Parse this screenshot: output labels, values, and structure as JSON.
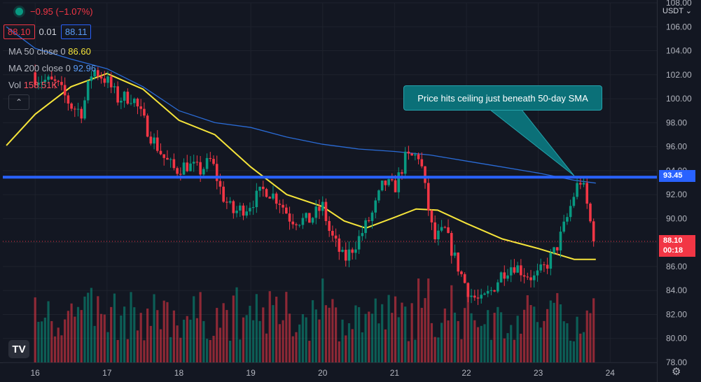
{
  "header": {
    "change": "−0.95 (−1.07%)",
    "bid": "88.10",
    "spread": "0.01",
    "ask": "88.11"
  },
  "legend": {
    "ma50_label": "MA 50 close 0",
    "ma50_value": "86.60",
    "ma200_label": "MA 200 close 0",
    "ma200_value": "92.96",
    "vol_label": "Vol",
    "vol_value": "158.51K",
    "collapse_symbol": "⌃"
  },
  "annotation": {
    "text": "Price hits ceiling just beneath 50-day SMA"
  },
  "price_axis": {
    "currency": "USDT ⌄",
    "horizontal_level": "93.45",
    "last_price": "88.10",
    "countdown": "00:18"
  },
  "branding": {
    "logo_text": "TV"
  },
  "settings_icon": "⚙",
  "chart_data": {
    "type": "candlestick",
    "title": "",
    "y_range": [
      78,
      108
    ],
    "y_ticks": [
      78,
      80,
      82,
      84,
      86,
      88,
      90,
      92,
      94,
      96,
      98,
      100,
      102,
      104,
      106,
      108
    ],
    "y_tick_labels": [
      "78.00",
      "80.00",
      "82.00",
      "84.00",
      "86.00",
      "88.00",
      "90.00",
      "92.00",
      "94.00",
      "96.00",
      "98.00",
      "100.00",
      "102.00",
      "104.00",
      "106.00",
      "108.00"
    ],
    "x_ticks": [
      16,
      17,
      18,
      19,
      20,
      21,
      22,
      23,
      24
    ],
    "x_tick_labels": [
      "16",
      "17",
      "18",
      "19",
      "20",
      "21",
      "22",
      "23",
      "24"
    ],
    "x_range": [
      15.55,
      24.65
    ],
    "candle_count": 170,
    "close_path": [
      [
        16.0,
        101.8
      ],
      [
        16.3,
        101.2
      ],
      [
        16.5,
        99.4
      ],
      [
        16.65,
        98.9
      ],
      [
        16.8,
        102.5
      ],
      [
        17.0,
        101.5
      ],
      [
        17.15,
        100.0
      ],
      [
        17.35,
        100.2
      ],
      [
        17.6,
        97.0
      ],
      [
        17.8,
        95.0
      ],
      [
        17.95,
        94.0
      ],
      [
        18.1,
        94.5
      ],
      [
        18.3,
        94.0
      ],
      [
        18.45,
        94.9
      ],
      [
        18.6,
        92.0
      ],
      [
        18.75,
        90.5
      ],
      [
        18.95,
        91.0
      ],
      [
        19.2,
        92.5
      ],
      [
        19.4,
        91.5
      ],
      [
        19.55,
        90.0
      ],
      [
        19.8,
        89.8
      ],
      [
        20.0,
        91.0
      ],
      [
        20.1,
        88.8
      ],
      [
        20.3,
        86.5
      ],
      [
        20.5,
        88.3
      ],
      [
        20.7,
        90.5
      ],
      [
        20.85,
        93.0
      ],
      [
        21.0,
        92.5
      ],
      [
        21.15,
        95.0
      ],
      [
        21.35,
        95.3
      ],
      [
        21.45,
        91.5
      ],
      [
        21.55,
        88.2
      ],
      [
        21.7,
        89.0
      ],
      [
        21.85,
        86.5
      ],
      [
        21.95,
        85.0
      ],
      [
        22.05,
        83.7
      ],
      [
        22.2,
        83.0
      ],
      [
        22.35,
        84.0
      ],
      [
        22.5,
        85.5
      ],
      [
        22.65,
        86.2
      ],
      [
        22.8,
        85.5
      ],
      [
        22.95,
        85.0
      ],
      [
        23.1,
        86.0
      ],
      [
        23.25,
        87.5
      ],
      [
        23.4,
        90.0
      ],
      [
        23.52,
        92.5
      ],
      [
        23.6,
        93.3
      ],
      [
        23.7,
        90.5
      ],
      [
        23.77,
        88.1
      ]
    ],
    "sma50": [
      [
        15.6,
        96.1
      ],
      [
        16.0,
        98.7
      ],
      [
        16.5,
        101.0
      ],
      [
        17.0,
        102.1
      ],
      [
        17.5,
        100.8
      ],
      [
        18.0,
        98.2
      ],
      [
        18.5,
        97.0
      ],
      [
        19.0,
        94.3
      ],
      [
        19.5,
        92.0
      ],
      [
        20.0,
        91.0
      ],
      [
        20.3,
        89.8
      ],
      [
        20.6,
        89.2
      ],
      [
        21.0,
        90.1
      ],
      [
        21.3,
        90.8
      ],
      [
        21.6,
        90.7
      ],
      [
        22.0,
        89.6
      ],
      [
        22.5,
        88.3
      ],
      [
        23.0,
        87.5
      ],
      [
        23.5,
        86.6
      ],
      [
        23.8,
        86.6
      ]
    ],
    "sma200": [
      [
        15.6,
        106.0
      ],
      [
        16.0,
        104.2
      ],
      [
        16.5,
        103.3
      ],
      [
        17.0,
        102.5
      ],
      [
        17.5,
        101.0
      ],
      [
        18.0,
        99.0
      ],
      [
        18.5,
        98.0
      ],
      [
        19.0,
        97.6
      ],
      [
        19.5,
        96.8
      ],
      [
        20.0,
        96.2
      ],
      [
        20.5,
        95.8
      ],
      [
        21.0,
        95.6
      ],
      [
        21.5,
        95.3
      ],
      [
        22.0,
        94.8
      ],
      [
        22.5,
        94.3
      ],
      [
        23.0,
        93.8
      ],
      [
        23.5,
        93.2
      ],
      [
        23.8,
        92.96
      ]
    ],
    "horizontal_level": 93.45,
    "last_price": 88.1,
    "volume_panel": {
      "max_bar_height_in_price_units": 7.0,
      "last_volume": "158.51K"
    },
    "callout_target": {
      "x": 23.5,
      "y": 93.45
    }
  }
}
